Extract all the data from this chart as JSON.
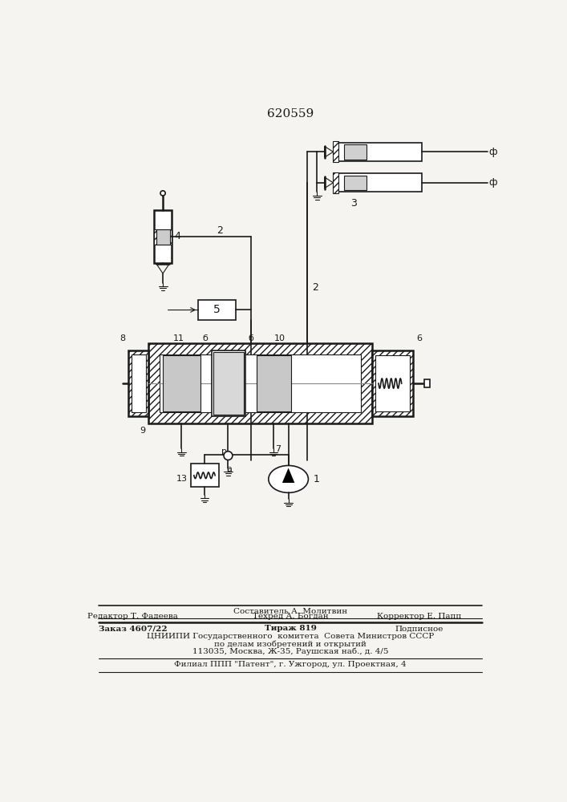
{
  "title": "620559",
  "bg_color": "#f5f4f0",
  "line_color": "#1a1a1a",
  "footer": {
    "line1_center": "Составитель А. Молитвин",
    "line2_left": "Редактор Т. Фадеева",
    "line2_center": "Техред А. Богдан",
    "line2_right": "Корректор Е. Папп",
    "line3_left": "Заказ 4607/22",
    "line3_center": "Тираж 819",
    "line3_right": "Подписное",
    "line4": "ЦНИИПИ Государственного  комитета  Совета Министров СССР",
    "line5": "по делам изобретений и открытий",
    "line6": "113035, Москва, Ж-35, Раушская наб., д. 4/5",
    "line7": "Филиал ППП \"Патент\", г. Ужгород, ул. Проектная, 4"
  }
}
